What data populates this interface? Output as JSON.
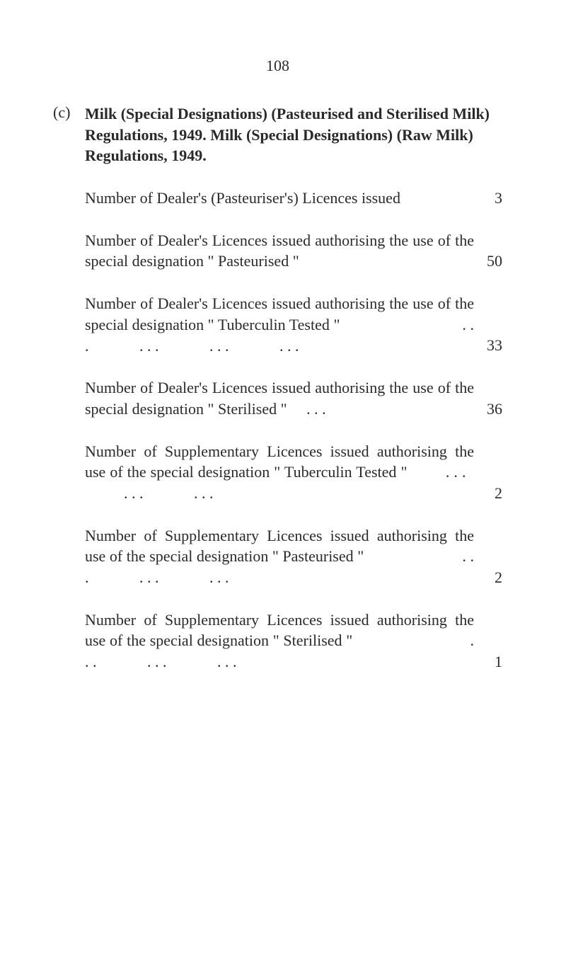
{
  "pageNumber": "108",
  "section": {
    "label": "(c)",
    "title": "Milk (Special Designations) (Pasteurised and Sterilised Milk) Regulations, 1949. Milk (Special Designations) (Raw Milk) Regulations, 1949."
  },
  "entries": [
    {
      "text": "Number of Dealer's (Pasteuriser's) Licences issued",
      "value": "3"
    },
    {
      "text": "Number of Dealer's Licences issued authorising the use of the special designation \" Pasteurised \"",
      "value": "50"
    },
    {
      "text": "Number of Dealer's Licences issued authorising the use of the special designation \" Tuberculin Tested \"                               . . .             . . .             . . .             . . .",
      "value": "33"
    },
    {
      "text": "Number of Dealer's Licences issued authorising the use of the special designation \" Sterilised \"     . . .",
      "value": "36"
    },
    {
      "text": "Number of Supplementary Licences issued authorising the use of the special designation \" Tuberculin Tested \"         . . .             . . .             . . .",
      "value": "2"
    },
    {
      "text": "Number of Supplementary Licences issued authorising the use of the special designation \" Pasteurised \"                         . . .             . . .             . . .",
      "value": "2"
    },
    {
      "text": "Number of Supplementary Licences issued authorising the use of the special designation \" Sterilised \"                             . . .             . . .             . . .",
      "value": "1"
    }
  ]
}
